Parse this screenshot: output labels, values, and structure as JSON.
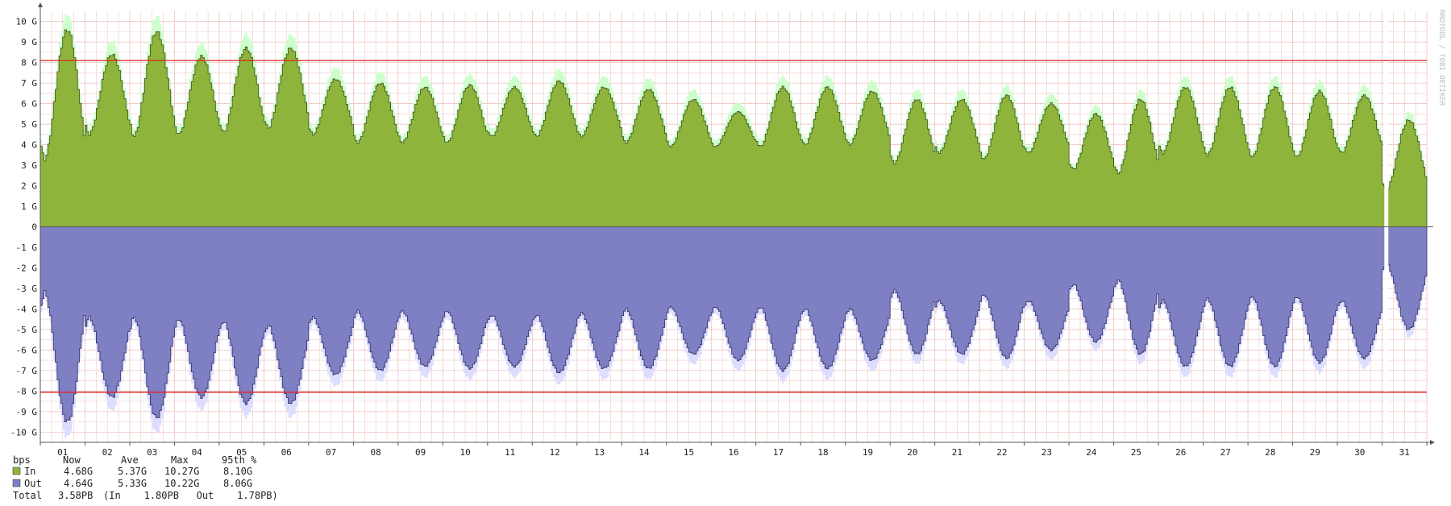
{
  "chart_data": {
    "type": "area",
    "title": "",
    "xlabel": "",
    "ylabel": "bps",
    "side_label": "RRDTOOL / TOBI OETIKER",
    "x_ticks": [
      "01",
      "02",
      "03",
      "04",
      "05",
      "06",
      "07",
      "08",
      "09",
      "10",
      "11",
      "12",
      "13",
      "14",
      "15",
      "16",
      "17",
      "18",
      "19",
      "20",
      "21",
      "22",
      "23",
      "24",
      "25",
      "26",
      "27",
      "28",
      "29",
      "30",
      "31"
    ],
    "y_ticks": [
      {
        "v": 10,
        "label": "10 G"
      },
      {
        "v": 9,
        "label": "9 G"
      },
      {
        "v": 8,
        "label": "8 G"
      },
      {
        "v": 7,
        "label": "7 G"
      },
      {
        "v": 6,
        "label": "6 G"
      },
      {
        "v": 5,
        "label": "5 G"
      },
      {
        "v": 4,
        "label": "4 G"
      },
      {
        "v": 3,
        "label": "3 G"
      },
      {
        "v": 2,
        "label": "2 G"
      },
      {
        "v": 1,
        "label": "1 G"
      },
      {
        "v": 0,
        "label": "0"
      },
      {
        "v": -1,
        "label": "-1 G"
      },
      {
        "v": -2,
        "label": "-2 G"
      },
      {
        "v": -3,
        "label": "-3 G"
      },
      {
        "v": -4,
        "label": "-4 G"
      },
      {
        "v": -5,
        "label": "-5 G"
      },
      {
        "v": -6,
        "label": "-6 G"
      },
      {
        "v": -7,
        "label": "-7 G"
      },
      {
        "v": -8,
        "label": "-8 G"
      },
      {
        "v": -9,
        "label": "-9 G"
      },
      {
        "v": -10,
        "label": "-10 G"
      }
    ],
    "ylim": [
      -10.5,
      10.5
    ],
    "units": "Gbps",
    "grid": true,
    "percentile_lines": [
      8.1,
      -8.06
    ],
    "colors": {
      "in_area": "#8fb43b",
      "in_peak": "#ccffcc",
      "out_area": "#7f7fc4",
      "out_peak": "#ddddff",
      "outline": "#3a4a18",
      "percentile": "#dd2222",
      "grid": "#f2c9c9"
    },
    "series": [
      {
        "name": "In",
        "daily_peaks": [
          9.6,
          8.4,
          9.5,
          8.3,
          8.7,
          8.7,
          7.2,
          7.0,
          6.8,
          6.9,
          6.8,
          7.1,
          6.8,
          6.7,
          6.2,
          5.6,
          6.8,
          6.8,
          6.6,
          6.2,
          6.2,
          6.4,
          6.0,
          5.5,
          6.2,
          6.8,
          6.8,
          6.8,
          6.6,
          6.4,
          5.2
        ],
        "daily_troughs": [
          3.3,
          4.5,
          4.4,
          4.5,
          4.6,
          4.8,
          4.5,
          4.1,
          4.1,
          4.1,
          4.4,
          4.4,
          4.4,
          4.1,
          3.9,
          3.9,
          3.9,
          4.0,
          4.0,
          3.1,
          3.6,
          3.3,
          3.6,
          2.8,
          2.6,
          3.6,
          3.5,
          3.4,
          3.4,
          3.6,
          1.8
        ]
      },
      {
        "name": "Out",
        "daily_peaks": [
          -9.5,
          -8.3,
          -9.3,
          -8.3,
          -8.6,
          -8.6,
          -7.2,
          -7.0,
          -6.8,
          -6.9,
          -6.8,
          -7.1,
          -6.9,
          -6.9,
          -6.2,
          -6.5,
          -7.0,
          -6.9,
          -6.5,
          -6.2,
          -6.2,
          -6.4,
          -6.0,
          -5.6,
          -6.2,
          -6.8,
          -6.8,
          -6.8,
          -6.6,
          -6.4,
          -5.0
        ],
        "daily_troughs": [
          -3.2,
          -4.4,
          -4.4,
          -4.5,
          -4.6,
          -4.8,
          -4.4,
          -4.1,
          -4.1,
          -4.1,
          -4.3,
          -4.3,
          -4.2,
          -4.0,
          -3.9,
          -3.9,
          -3.9,
          -4.0,
          -4.0,
          -3.1,
          -3.6,
          -3.3,
          -3.6,
          -2.8,
          -2.6,
          -3.6,
          -3.5,
          -3.4,
          -3.4,
          -3.6,
          -1.8
        ]
      }
    ],
    "legend": {
      "header": [
        "bps",
        "Now",
        "Ave",
        "Max",
        "95th %"
      ],
      "rows": [
        {
          "name": "In",
          "now": "4.68G",
          "ave": "5.37G",
          "max": "10.27G",
          "p95": "8.10G",
          "color": "#8fb43b"
        },
        {
          "name": "Out",
          "now": "4.64G",
          "ave": "5.33G",
          "max": "10.22G",
          "p95": "8.06G",
          "color": "#7f7fc4"
        }
      ],
      "total_label": "Total",
      "total_value": "3.58PB",
      "total_detail": "(In    1.80PB   Out    1.78PB)"
    }
  }
}
